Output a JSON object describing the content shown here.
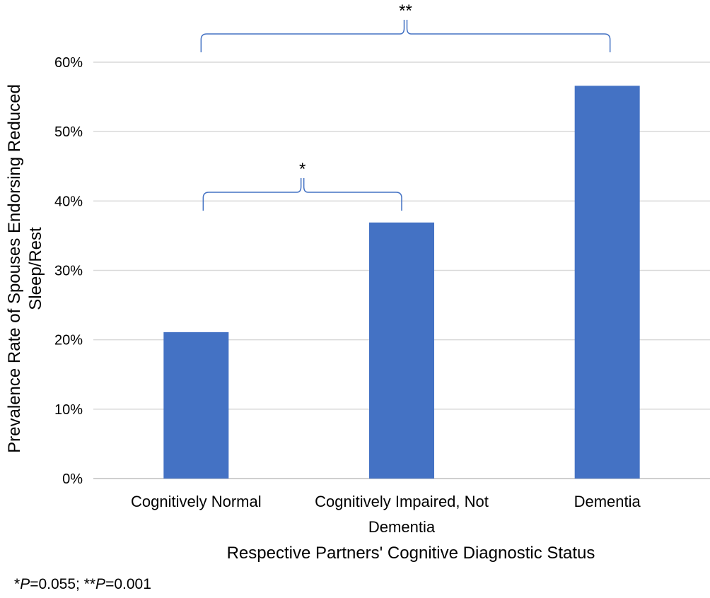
{
  "chart_data": {
    "type": "bar",
    "categories": [
      [
        "Cognitively Normal"
      ],
      [
        "Cognitively Impaired, Not",
        "Dementia"
      ],
      [
        "Dementia"
      ]
    ],
    "values": [
      0.211,
      0.369,
      0.566
    ],
    "ylim": [
      0,
      0.6
    ],
    "yticks": [
      "0%",
      "10%",
      "20%",
      "30%",
      "40%",
      "50%",
      "60%"
    ],
    "xlabel": "Respective Partners' Cognitive Diagnostic Status",
    "ylabel": [
      "Prevalence Rate of Spouses Endorsing Reduced",
      "Sleep/Rest"
    ],
    "grid": true,
    "bar_color": "#4472C4",
    "grid_color": "#D9D9D9",
    "brace_color": "#4472C4",
    "significance": [
      {
        "from": 0,
        "to": 1,
        "label": "*"
      },
      {
        "from": 0,
        "to": 2,
        "label": "**"
      }
    ]
  },
  "footnote": {
    "p1_prefix": "*",
    "p1_italic": "P",
    "p1_value": "=0.055; ",
    "p2_prefix": "**",
    "p2_italic": "P",
    "p2_value": "=0.001"
  }
}
